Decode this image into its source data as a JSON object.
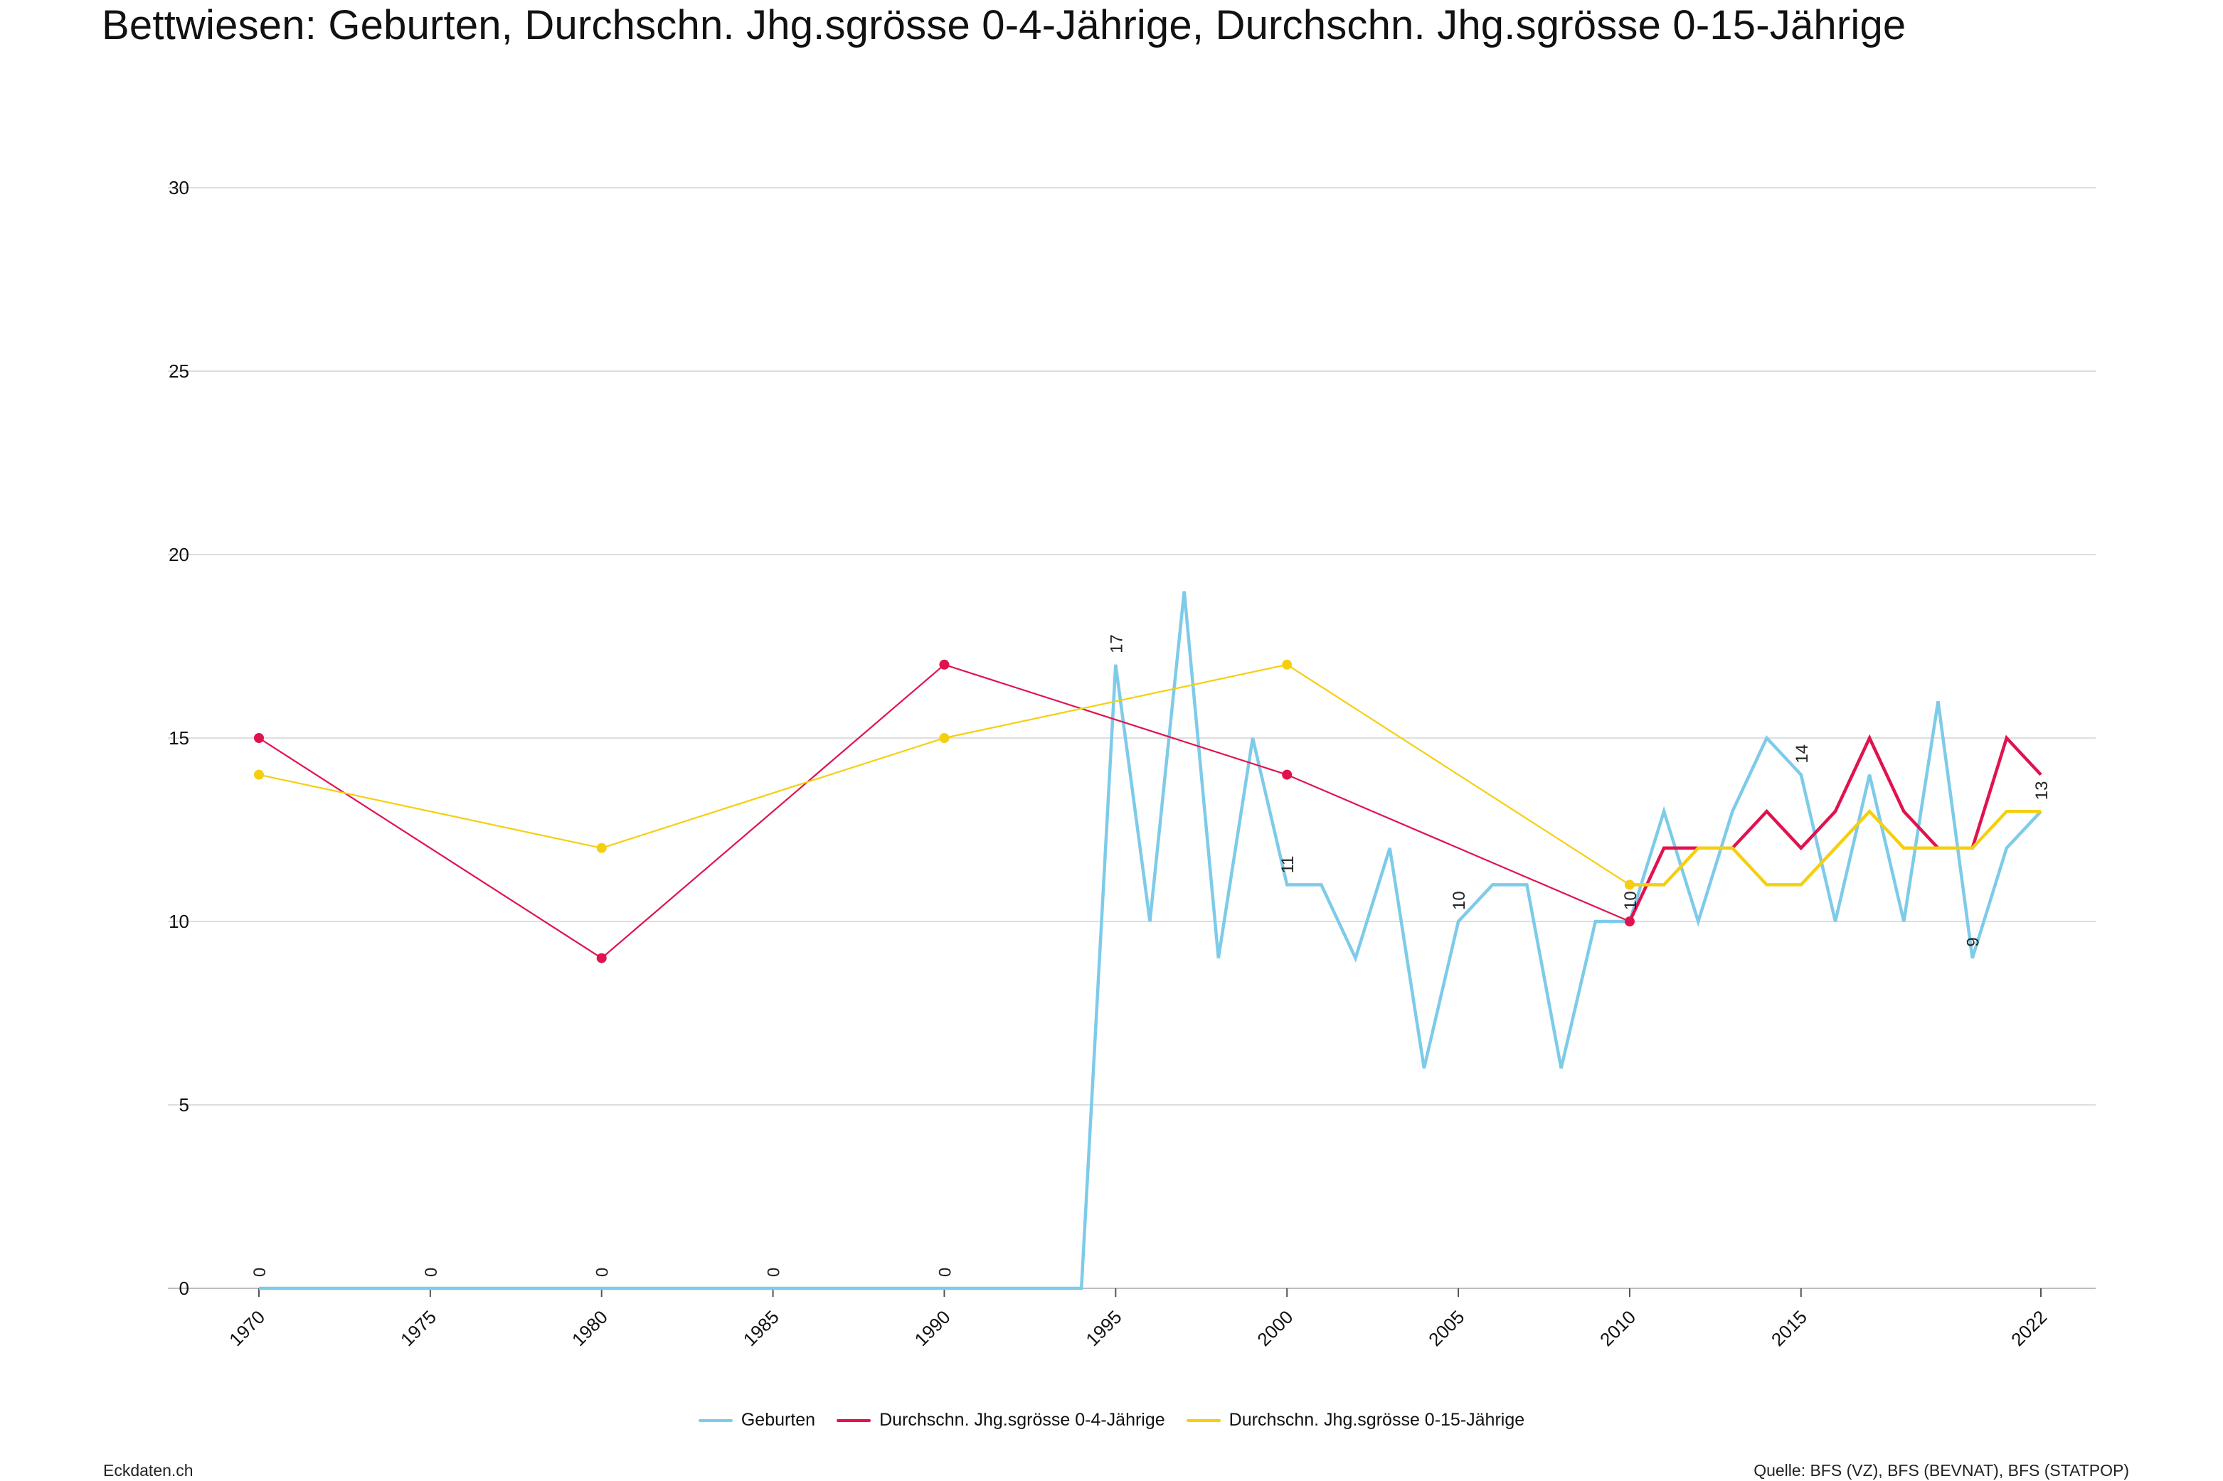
{
  "title": "Bettwiesen: Geburten, Durchschn. Jhg.sgrösse 0-4-Jährige, Durchschn. Jhg.sgrösse 0-15-Jährige",
  "footer": {
    "left": "Eckdaten.ch",
    "right": "Quelle: BFS (VZ), BFS (BEVNAT), BFS (STATPOP)"
  },
  "chart_data": {
    "type": "line",
    "ylim": [
      0,
      30
    ],
    "y_ticks": [
      0,
      5,
      10,
      15,
      20,
      25,
      30
    ],
    "xlim": [
      1970,
      2022
    ],
    "x_ticks": [
      1970,
      1975,
      1980,
      1985,
      1990,
      1995,
      2000,
      2005,
      2010,
      2015,
      2022
    ],
    "grid": true,
    "legend_position": "bottom",
    "series": [
      {
        "name": "Geburten",
        "color": "#7ecbe9",
        "x": [
          1970,
          1971,
          1972,
          1973,
          1974,
          1975,
          1976,
          1977,
          1978,
          1979,
          1980,
          1981,
          1982,
          1983,
          1984,
          1985,
          1986,
          1987,
          1988,
          1989,
          1990,
          1991,
          1992,
          1993,
          1994,
          1995,
          1996,
          1997,
          1998,
          1999,
          2000,
          2001,
          2002,
          2003,
          2004,
          2005,
          2006,
          2007,
          2008,
          2009,
          2010,
          2011,
          2012,
          2013,
          2014,
          2015,
          2016,
          2017,
          2018,
          2019,
          2020,
          2021,
          2022
        ],
        "y": [
          0,
          0,
          0,
          0,
          0,
          0,
          0,
          0,
          0,
          0,
          0,
          0,
          0,
          0,
          0,
          0,
          0,
          0,
          0,
          0,
          0,
          0,
          0,
          0,
          0,
          17,
          10,
          19,
          9,
          15,
          11,
          11,
          9,
          12,
          6,
          10,
          11,
          11,
          6,
          10,
          10,
          13,
          10,
          13,
          15,
          14,
          10,
          14,
          10,
          16,
          9,
          12,
          13
        ],
        "data_labels": [
          {
            "x": 1970,
            "y": 0,
            "text": "0"
          },
          {
            "x": 1975,
            "y": 0,
            "text": "0"
          },
          {
            "x": 1980,
            "y": 0,
            "text": "0"
          },
          {
            "x": 1985,
            "y": 0,
            "text": "0"
          },
          {
            "x": 1990,
            "y": 0,
            "text": "0"
          },
          {
            "x": 1995,
            "y": 17,
            "text": "17"
          },
          {
            "x": 2000,
            "y": 11,
            "text": "11"
          },
          {
            "x": 2005,
            "y": 10,
            "text": "10"
          },
          {
            "x": 2010,
            "y": 10,
            "text": "10"
          },
          {
            "x": 2015,
            "y": 14,
            "text": "14"
          },
          {
            "x": 2020,
            "y": 9,
            "text": "9"
          },
          {
            "x": 2022,
            "y": 13,
            "text": "13"
          }
        ]
      },
      {
        "name": "Durchschn. Jhg.sgrösse 0-4-Jährige",
        "color": "#e0134f",
        "x": [
          1970,
          1980,
          1990,
          2000,
          2010,
          2011,
          2012,
          2013,
          2014,
          2015,
          2016,
          2017,
          2018,
          2019,
          2020,
          2021,
          2022
        ],
        "y": [
          15,
          9,
          17,
          14,
          10,
          12,
          12,
          12,
          13,
          12,
          13,
          15,
          13,
          12,
          12,
          15,
          14
        ],
        "markers": [
          1970,
          1980,
          1990,
          2000,
          2010
        ]
      },
      {
        "name": "Durchschn. Jhg.sgrösse 0-15-Jährige",
        "color": "#f5cf0f",
        "x": [
          1970,
          1980,
          1990,
          2000,
          2010,
          2011,
          2012,
          2013,
          2014,
          2015,
          2016,
          2017,
          2018,
          2019,
          2020,
          2021,
          2022
        ],
        "y": [
          14,
          12,
          15,
          17,
          11,
          11,
          12,
          12,
          11,
          11,
          12,
          13,
          12,
          12,
          12,
          13,
          13
        ],
        "markers": [
          1970,
          1980,
          1990,
          2000,
          2010
        ]
      }
    ]
  }
}
